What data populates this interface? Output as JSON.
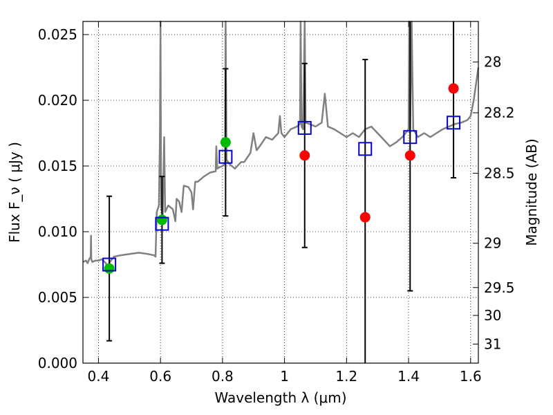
{
  "chart_data": {
    "type": "scatter",
    "xlabel": "Wavelength  λ (μm)",
    "ylabel": "Flux  F_ν  ( μJy )",
    "ylabel_right": "Magnitude (AB)",
    "xlim": [
      0.35,
      1.625
    ],
    "ylim": [
      0.0,
      0.026
    ],
    "grid": true,
    "x_ticks": [
      0.4,
      0.6,
      0.8,
      1.0,
      1.2,
      1.4,
      1.6
    ],
    "x_tick_labels": [
      "0.4",
      "0.6",
      "0.8",
      "1",
      "1.2",
      "1.4",
      "1.6"
    ],
    "y_ticks": [
      0.0,
      0.005,
      0.01,
      0.015,
      0.02,
      0.025
    ],
    "y_tick_labels": [
      "0.000",
      "0.005",
      "0.010",
      "0.015",
      "0.020",
      "0.025"
    ],
    "right_ticks": [
      {
        "label": "28",
        "flux": 0.02291
      },
      {
        "label": "28.2",
        "flux": 0.01905
      },
      {
        "label": "28.5",
        "flux": 0.01445
      },
      {
        "label": "29",
        "flux": 0.00912
      },
      {
        "label": "29.5",
        "flux": 0.00575
      },
      {
        "label": "30",
        "flux": 0.00363
      },
      {
        "label": "31",
        "flux": 0.00145
      }
    ],
    "colors": {
      "model": "#808080",
      "observed": "#ff0000",
      "other": "#00bb00",
      "synthetic": "#0000cc",
      "errorbar": "#000000"
    },
    "series": [
      {
        "kind": "line",
        "points": [
          [
            0.35,
            0.0077
          ],
          [
            0.36,
            0.0078
          ],
          [
            0.365,
            0.0076
          ],
          [
            0.37,
            0.0079
          ],
          [
            0.375,
            0.0081
          ],
          [
            0.376,
            0.0097
          ],
          [
            0.377,
            0.0079
          ],
          [
            0.38,
            0.0077
          ],
          [
            0.39,
            0.0078
          ],
          [
            0.4,
            0.0078
          ],
          [
            0.41,
            0.0079
          ],
          [
            0.42,
            0.0077
          ],
          [
            0.43,
            0.0074
          ],
          [
            0.44,
            0.0078
          ],
          [
            0.45,
            0.0081
          ],
          [
            0.47,
            0.0082
          ],
          [
            0.5,
            0.0083
          ],
          [
            0.53,
            0.0084
          ],
          [
            0.56,
            0.0083
          ],
          [
            0.58,
            0.0082
          ],
          [
            0.584,
            0.0081
          ],
          [
            0.588,
            0.0115
          ],
          [
            0.595,
            0.012
          ],
          [
            0.598,
            0.017
          ],
          [
            0.6,
            0.026
          ],
          [
            0.602,
            0.012
          ],
          [
            0.607,
            0.011
          ],
          [
            0.612,
            0.0172
          ],
          [
            0.615,
            0.0115
          ],
          [
            0.625,
            0.012
          ],
          [
            0.64,
            0.0117
          ],
          [
            0.648,
            0.0108
          ],
          [
            0.652,
            0.0125
          ],
          [
            0.66,
            0.0123
          ],
          [
            0.668,
            0.0115
          ],
          [
            0.675,
            0.0135
          ],
          [
            0.69,
            0.0134
          ],
          [
            0.7,
            0.013
          ],
          [
            0.705,
            0.0117
          ],
          [
            0.712,
            0.0138
          ],
          [
            0.72,
            0.0138
          ],
          [
            0.74,
            0.0142
          ],
          [
            0.76,
            0.0145
          ],
          [
            0.778,
            0.0146
          ],
          [
            0.78,
            0.0165
          ],
          [
            0.783,
            0.0148
          ],
          [
            0.79,
            0.0149
          ],
          [
            0.8,
            0.015
          ],
          [
            0.808,
            0.0152
          ],
          [
            0.81,
            0.026
          ],
          [
            0.813,
            0.0155
          ],
          [
            0.82,
            0.0152
          ],
          [
            0.84,
            0.0148
          ],
          [
            0.86,
            0.0153
          ],
          [
            0.87,
            0.0153
          ],
          [
            0.89,
            0.016
          ],
          [
            0.9,
            0.0175
          ],
          [
            0.91,
            0.0162
          ],
          [
            0.92,
            0.0165
          ],
          [
            0.94,
            0.0172
          ],
          [
            0.96,
            0.017
          ],
          [
            0.98,
            0.0175
          ],
          [
            0.985,
            0.0188
          ],
          [
            0.99,
            0.0175
          ],
          [
            1.0,
            0.0172
          ],
          [
            1.02,
            0.0178
          ],
          [
            1.04,
            0.018
          ],
          [
            1.05,
            0.0182
          ],
          [
            1.052,
            0.026
          ],
          [
            1.055,
            0.018
          ],
          [
            1.06,
            0.0178
          ],
          [
            1.065,
            0.026
          ],
          [
            1.068,
            0.0183
          ],
          [
            1.08,
            0.0182
          ],
          [
            1.1,
            0.018
          ],
          [
            1.12,
            0.0183
          ],
          [
            1.13,
            0.0205
          ],
          [
            1.14,
            0.018
          ],
          [
            1.16,
            0.0178
          ],
          [
            1.18,
            0.0175
          ],
          [
            1.2,
            0.0172
          ],
          [
            1.22,
            0.0175
          ],
          [
            1.24,
            0.0172
          ],
          [
            1.26,
            0.0178
          ],
          [
            1.28,
            0.018
          ],
          [
            1.3,
            0.0175
          ],
          [
            1.32,
            0.017
          ],
          [
            1.34,
            0.0165
          ],
          [
            1.36,
            0.0168
          ],
          [
            1.38,
            0.0172
          ],
          [
            1.4,
            0.0178
          ],
          [
            1.402,
            0.026
          ],
          [
            1.405,
            0.0175
          ],
          [
            1.41,
            0.026
          ],
          [
            1.415,
            0.0178
          ],
          [
            1.43,
            0.0172
          ],
          [
            1.45,
            0.0175
          ],
          [
            1.47,
            0.0172
          ],
          [
            1.49,
            0.0175
          ],
          [
            1.51,
            0.0178
          ],
          [
            1.53,
            0.018
          ],
          [
            1.55,
            0.0182
          ],
          [
            1.57,
            0.0183
          ],
          [
            1.59,
            0.0185
          ],
          [
            1.6,
            0.0188
          ],
          [
            1.61,
            0.02
          ],
          [
            1.625,
            0.0225
          ]
        ]
      },
      {
        "kind": "errorbar",
        "x": [
          0.435,
          0.605,
          0.81,
          1.065,
          1.26,
          1.405,
          1.545
        ],
        "y": [
          0.0072,
          0.0109,
          0.0168,
          0.0158,
          0.0111,
          0.0158,
          0.0209
        ],
        "err_low": [
          0.0055,
          0.0033,
          0.0056,
          0.007,
          0.0111,
          0.0103,
          0.0068
        ],
        "err_high": [
          0.0055,
          0.0033,
          0.0056,
          0.007,
          0.012,
          0.0103,
          0.0068
        ]
      },
      {
        "kind": "points",
        "marker": "circle-red",
        "x": [
          1.065,
          1.26,
          1.405,
          1.545
        ],
        "y": [
          0.0158,
          0.0111,
          0.0158,
          0.0209
        ]
      },
      {
        "kind": "points",
        "marker": "circle-green",
        "x": [
          0.435,
          0.605,
          0.81
        ],
        "y": [
          0.0072,
          0.0109,
          0.0168
        ]
      },
      {
        "kind": "points",
        "marker": "square-open",
        "x": [
          0.435,
          0.605,
          0.81,
          1.065,
          1.26,
          1.405,
          1.545
        ],
        "y": [
          0.0075,
          0.0106,
          0.0157,
          0.0179,
          0.0163,
          0.0172,
          0.0183
        ]
      }
    ]
  }
}
